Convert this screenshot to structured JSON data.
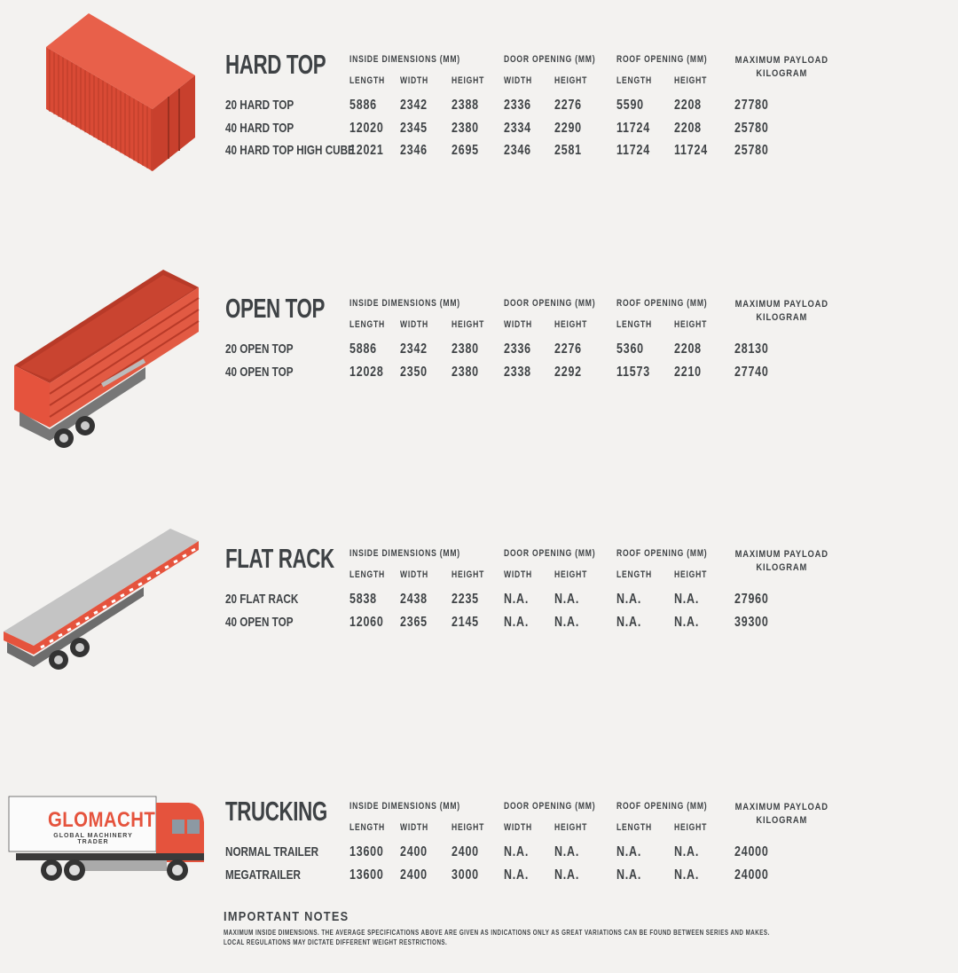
{
  "headers": {
    "inside": "INSIDE DIMENSIONS (MM)",
    "door": "DOOR OPENING (MM)",
    "roof": "ROOF OPENING (MM)",
    "payload_line1": "MAXIMUM PAYLOAD",
    "payload_line2": "KILOGRAM",
    "length": "LENGTH",
    "width": "WIDTH",
    "height": "HEIGHT"
  },
  "sections": [
    {
      "title": "HARD TOP",
      "icon": "shipping-container",
      "rows": [
        {
          "name": "20 HARD TOP",
          "values": [
            "5886",
            "2342",
            "2388",
            "2336",
            "2276",
            "5590",
            "2208",
            "27780"
          ]
        },
        {
          "name": "40 HARD TOP",
          "values": [
            "12020",
            "2345",
            "2380",
            "2334",
            "2290",
            "11724",
            "2208",
            "25780"
          ]
        },
        {
          "name": "40 HARD TOP HIGH CUBE",
          "values": [
            "12021",
            "2346",
            "2695",
            "2346",
            "2581",
            "11724",
            "11724",
            "25780"
          ]
        }
      ]
    },
    {
      "title": "OPEN TOP",
      "icon": "open-top-trailer",
      "rows": [
        {
          "name": "20 OPEN TOP",
          "values": [
            "5886",
            "2342",
            "2380",
            "2336",
            "2276",
            "5360",
            "2208",
            "28130"
          ]
        },
        {
          "name": "40 OPEN TOP",
          "values": [
            "12028",
            "2350",
            "2380",
            "2338",
            "2292",
            "11573",
            "2210",
            "27740"
          ]
        }
      ]
    },
    {
      "title": "FLAT RACK",
      "icon": "flat-rack-trailer",
      "rows": [
        {
          "name": "20 FLAT RACK",
          "values": [
            "5838",
            "2438",
            "2235",
            "N.A.",
            "N.A.",
            "N.A.",
            "N.A.",
            "27960"
          ]
        },
        {
          "name": "40 OPEN TOP",
          "values": [
            "12060",
            "2365",
            "2145",
            "N.A.",
            "N.A.",
            "N.A.",
            "N.A.",
            "39300"
          ]
        }
      ]
    },
    {
      "title": "TRUCKING",
      "icon": "truck",
      "rows": [
        {
          "name": "NORMAL TRAILER",
          "values": [
            "13600",
            "2400",
            "2400",
            "N.A.",
            "N.A.",
            "N.A.",
            "N.A.",
            "24000"
          ]
        },
        {
          "name": "MEGATRAILER",
          "values": [
            "13600",
            "2400",
            "3000",
            "N.A.",
            "N.A.",
            "N.A.",
            "N.A.",
            "24000"
          ]
        }
      ]
    }
  ],
  "logo": {
    "name": "GLOMACHT",
    "tagline": "GLOBAL MACHINERY TRADER"
  },
  "notes": {
    "title": "IMPORTANT NOTES",
    "line1": "MAXIMUM INSIDE DIMENSIONS. THE AVERAGE SPECIFICATIONS ABOVE ARE GIVEN AS INDICATIONS ONLY AS GREAT VARIATIONS CAN BE FOUND BETWEEN SERIES AND MAKES.",
    "line2": "LOCAL REGULATIONS MAY DICTATE DIFFERENT WEIGHT RESTRICTIONS."
  },
  "colors": {
    "accent": "#e5533d",
    "text": "#3e4245",
    "background": "#f3f2f0",
    "grey": "#c4c4c4"
  }
}
